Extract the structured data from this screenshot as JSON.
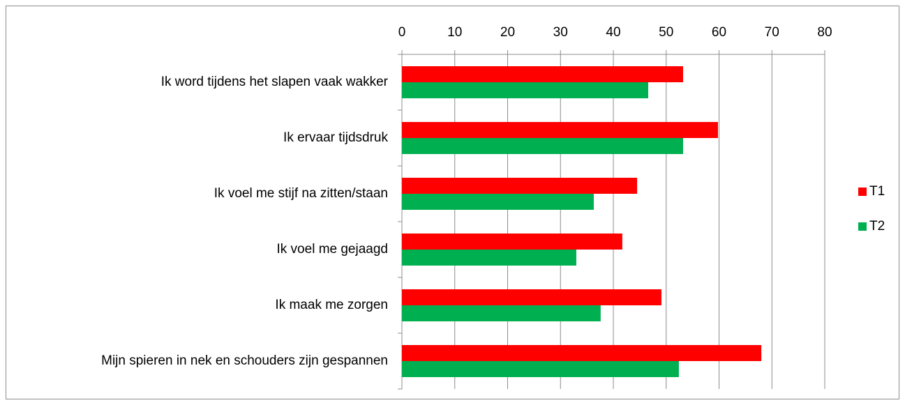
{
  "chart_data": {
    "type": "bar",
    "orientation": "horizontal",
    "categories": [
      "Ik word tijdens het slapen vaak wakker",
      "Ik ervaar tijdsdruk",
      "Ik voel me stijf na zitten/staan",
      "Ik voel me gejaagd",
      "Ik maak me zorgen",
      "Mijn spieren in nek en schouders zijn gespannen"
    ],
    "series": [
      {
        "name": "T1",
        "color": "#ff0000",
        "values": [
          53.2,
          59.8,
          44.5,
          41.7,
          49.1,
          68
        ]
      },
      {
        "name": "T2",
        "color": "#00b050",
        "values": [
          46.6,
          53.2,
          36.3,
          33,
          37.6,
          52.4
        ]
      }
    ],
    "xlim": [
      0,
      80
    ],
    "xticks": [
      0,
      10,
      20,
      30,
      40,
      50,
      60,
      70,
      80
    ],
    "grid": true,
    "legend": "right"
  }
}
